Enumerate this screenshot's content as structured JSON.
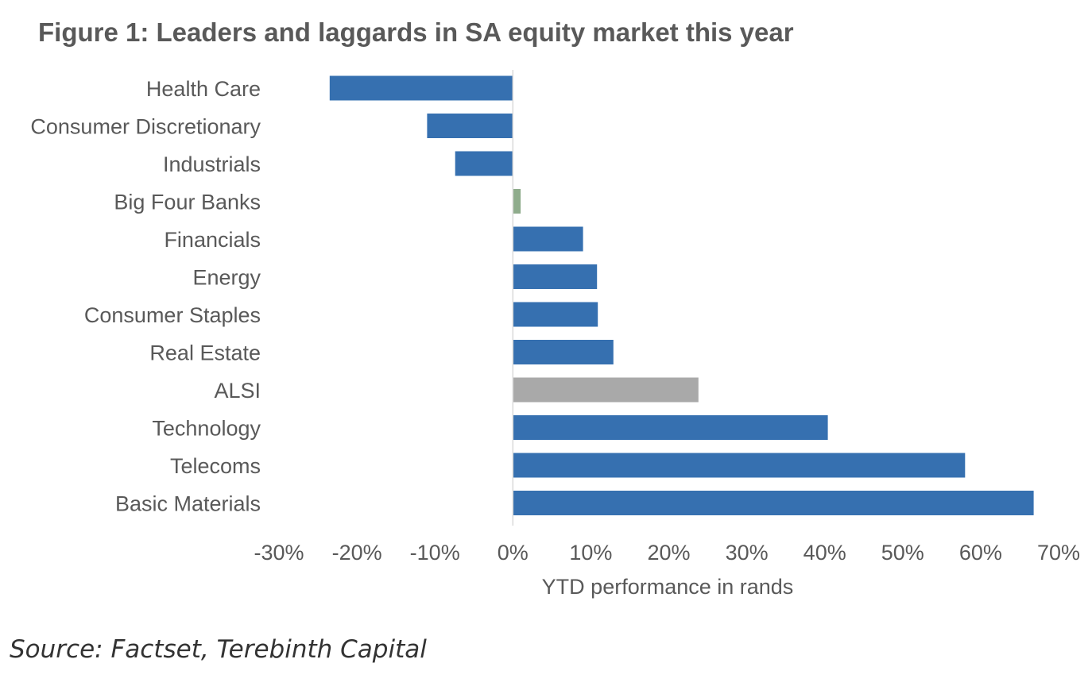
{
  "chart_data": {
    "type": "bar",
    "orientation": "horizontal",
    "title": "Figure 1: Leaders and laggards in SA equity market this year",
    "xlabel": "YTD performance in rands",
    "ylabel": "",
    "xlim": [
      -30,
      70
    ],
    "xticks": [
      -30,
      -20,
      -10,
      0,
      10,
      20,
      30,
      40,
      50,
      60,
      70
    ],
    "tick_labels": [
      "-30%",
      "-20%",
      "-10%",
      "0%",
      "10%",
      "20%",
      "30%",
      "40%",
      "50%",
      "60%",
      "70%"
    ],
    "unit_suffix": "%",
    "grid": false,
    "categories": [
      "Health Care",
      "Consumer Discretionary",
      "Industrials",
      "Big Four Banks",
      "Financials",
      "Energy",
      "Consumer Staples",
      "Real Estate",
      "ALSI",
      "Technology",
      "Telecoms",
      "Basic Materials"
    ],
    "values": [
      -23.5,
      -11.0,
      -7.4,
      1.0,
      9.0,
      10.8,
      10.9,
      12.9,
      23.8,
      40.4,
      58.0,
      66.8
    ],
    "bar_colors": [
      "#3670b0",
      "#3670b0",
      "#3670b0",
      "#8fac8c",
      "#3670b0",
      "#3670b0",
      "#3670b0",
      "#3670b0",
      "#a9a9a9",
      "#3670b0",
      "#3670b0",
      "#3670b0"
    ],
    "source": "Source: Factset, Terebinth Capital"
  },
  "colors": {
    "primary_bar": "#3670b0",
    "banks_bar": "#8fac8c",
    "index_bar": "#a9a9a9",
    "axis_line": "#d9d9d9",
    "text": "#595959"
  }
}
